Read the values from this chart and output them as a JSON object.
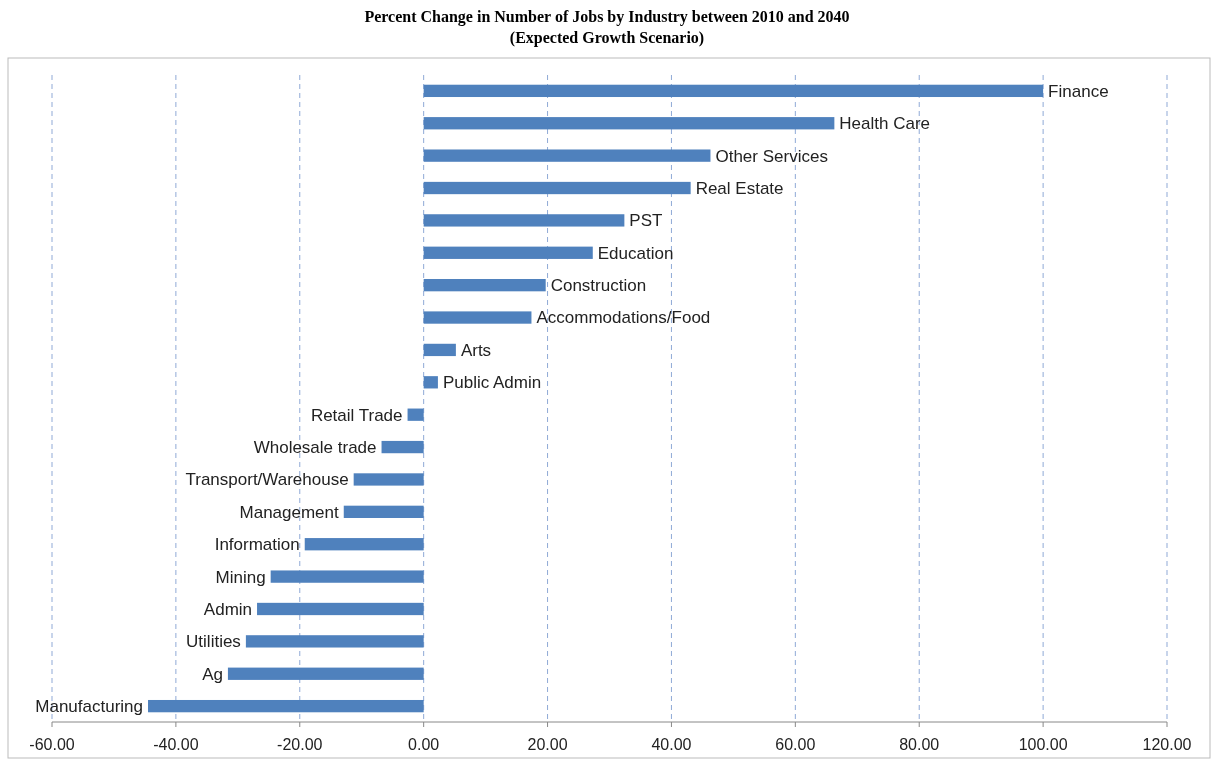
{
  "chart_data": {
    "type": "bar",
    "orientation": "horizontal",
    "title": "Percent Change in Number of Jobs by Industry between 2010 and 2040",
    "subtitle": "(Expected Growth Scenario)",
    "categories": [
      "Finance",
      "Health Care",
      "Other Services",
      "Real Estate",
      "PST",
      "Education",
      "Construction",
      "Accommodations/Food",
      "Arts",
      "Public Admin",
      "Retail Trade",
      "Wholesale trade",
      "Transport/Warehouse",
      "Management",
      "Information",
      "Mining",
      "Admin",
      "Utilities",
      "Ag",
      "Manufacturing"
    ],
    "values": [
      100,
      66.3,
      46.3,
      43.1,
      32.4,
      27.3,
      19.7,
      17.4,
      5.2,
      2.3,
      -2.6,
      -6.8,
      -11.3,
      -12.9,
      -19.2,
      -24.7,
      -26.9,
      -28.7,
      -31.6,
      -44.5
    ],
    "color": "#4f81bd",
    "xlim": [
      -60,
      120
    ],
    "xticks": [
      {
        "value": -60,
        "label": "-60.00"
      },
      {
        "value": -40,
        "label": "-40.00"
      },
      {
        "value": -20,
        "label": "-20.00"
      },
      {
        "value": 0,
        "label": "0.00"
      },
      {
        "value": 20,
        "label": "20.00"
      },
      {
        "value": 40,
        "label": "40.00"
      },
      {
        "value": 60,
        "label": "60.00"
      },
      {
        "value": 80,
        "label": "80.00"
      },
      {
        "value": 100,
        "label": "100.00"
      },
      {
        "value": 120,
        "label": "120.00"
      }
    ],
    "grid": "x"
  }
}
